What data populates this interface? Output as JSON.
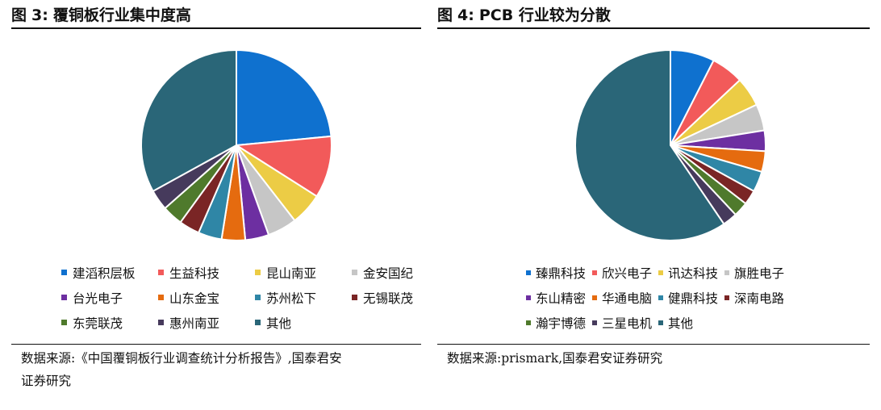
{
  "figures": [
    {
      "title": {
        "prefix": "图",
        "number": "3",
        "separator": ":",
        "text": "覆铜板行业集中度高"
      },
      "source_lines": [
        "数据来源:《中国覆铜板行业调查统计分析报告》,国泰君安",
        "证券研究"
      ],
      "chart_data": {
        "type": "pie",
        "start_angle_deg": 0,
        "direction": "clockwise",
        "legend_position": "bottom",
        "legend_columns": 4,
        "labels": [
          "建滔积层板",
          "生益科技",
          "昆山南亚",
          "金安国纪",
          "台光电子",
          "山东金宝",
          "苏州松下",
          "无锡联茂",
          "东莞联茂",
          "惠州南亚",
          "其他"
        ],
        "values": [
          23.5,
          10.5,
          5.5,
          5,
          4,
          4,
          4,
          3.5,
          3.5,
          3.5,
          33
        ],
        "colors": [
          "#0f71cf",
          "#f25a5a",
          "#eccc45",
          "#c6c6c6",
          "#6d2fa1",
          "#e56b0f",
          "#2f86a6",
          "#7a2525",
          "#4f7a2c",
          "#463a5c",
          "#2a6678"
        ]
      }
    },
    {
      "title": {
        "prefix": "图",
        "number": "4",
        "separator": ":",
        "text": "PCB 行业较为分散"
      },
      "source_lines": [
        "数据来源:prismark,国泰君安证券研究"
      ],
      "chart_data": {
        "type": "pie",
        "start_angle_deg": 0,
        "direction": "clockwise",
        "legend_position": "bottom",
        "legend_columns": 4,
        "labels": [
          "臻鼎科技",
          "欣兴电子",
          "讯达科技",
          "旗胜电子",
          "东山精密",
          "华通电脑",
          "健鼎科技",
          "深南电路",
          "瀚宇博德",
          "三星电机",
          "其他"
        ],
        "values": [
          7.5,
          5.5,
          5,
          4.5,
          3.5,
          3.5,
          3.5,
          2.5,
          2.5,
          2.5,
          59.5
        ],
        "colors": [
          "#0f71cf",
          "#f25a5a",
          "#eccc45",
          "#c6c6c6",
          "#6d2fa1",
          "#e56b0f",
          "#2f86a6",
          "#7a2525",
          "#4f7a2c",
          "#463a5c",
          "#2a6678"
        ]
      }
    }
  ]
}
